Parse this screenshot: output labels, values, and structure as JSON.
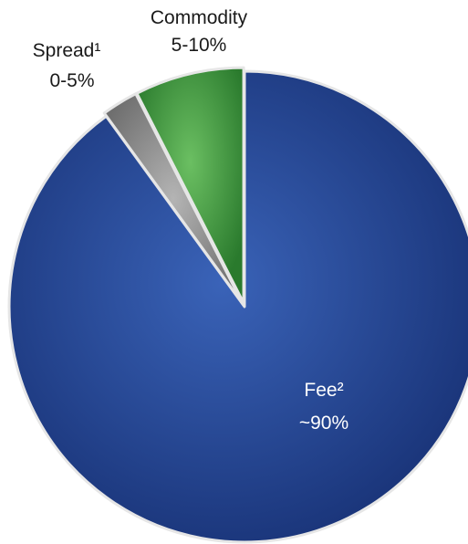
{
  "chart_data": {
    "type": "pie",
    "slices": [
      {
        "name": "Fee²",
        "value_label": "~90%",
        "value": 90,
        "color": "#1f3f8f"
      },
      {
        "name": "Spread¹",
        "value_label": "0-5%",
        "value": 2.5,
        "color": "#8f8f8f"
      },
      {
        "name": "Commodity",
        "value_label": "5-10%",
        "value": 7.5,
        "color": "#3f9a3f"
      }
    ],
    "start_angle": "12 o'clock",
    "direction": "clockwise",
    "title": "",
    "legend": "none"
  }
}
